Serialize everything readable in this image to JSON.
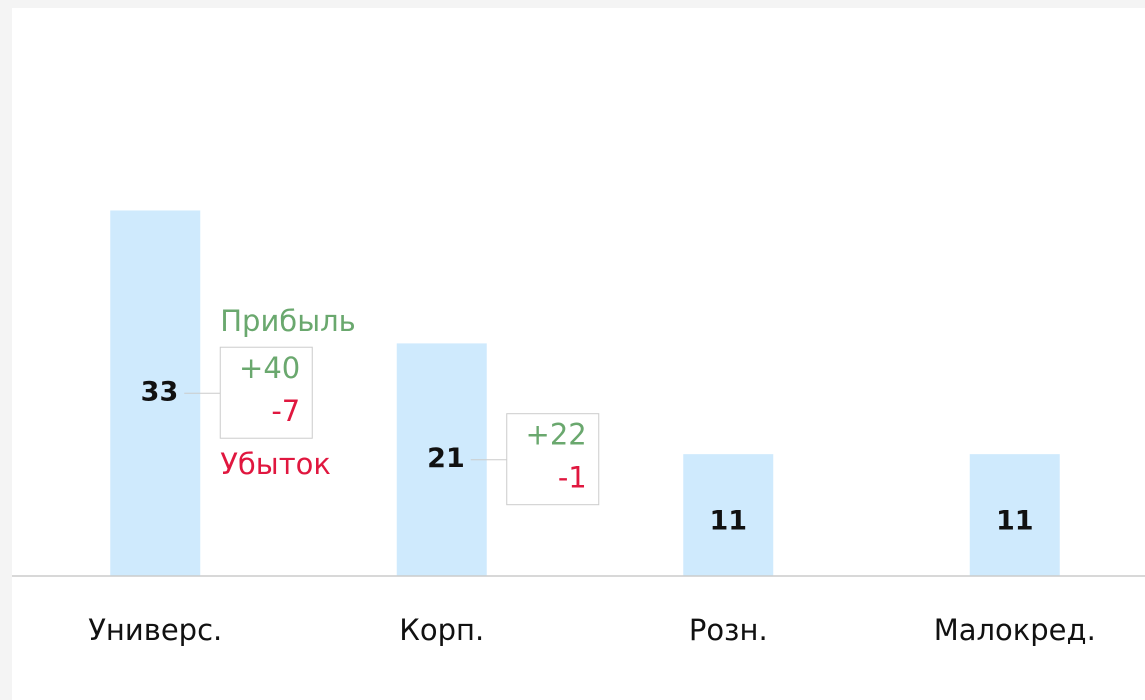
{
  "chart_data": {
    "type": "bar",
    "categories": [
      "Универс.",
      "Корп.",
      "Розн.",
      "Малокред."
    ],
    "values": [
      33,
      21,
      11,
      11
    ],
    "color": "#cfeafd",
    "ylim": [
      0,
      52
    ],
    "profit_label": "Прибыль",
    "loss_label": "Убыток",
    "profit_color": "#6aa86e",
    "loss_color": "#e0173f",
    "annotations": [
      {
        "profit": {
          "value": 40,
          "label": "+40"
        },
        "loss": -7
      },
      {
        "profit": {
          "value": 22,
          "label": "+22"
        },
        "loss": -1
      }
    ]
  }
}
